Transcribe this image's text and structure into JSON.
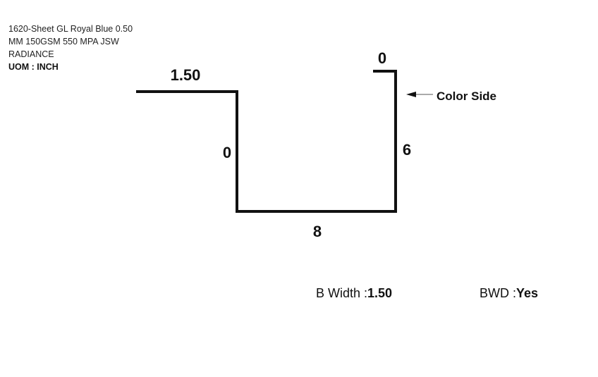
{
  "spec": {
    "line1": "1620-Sheet GL Royal Blue 0.50",
    "line2": "MM 150GSM 550 MPA JSW",
    "line3": "RADIANCE",
    "uom": "UOM : INCH"
  },
  "profile": {
    "segments": [
      {
        "name": "top-left-flange",
        "length": "1.50"
      },
      {
        "name": "left-wall",
        "length": "0"
      },
      {
        "name": "bottom",
        "length": "8"
      },
      {
        "name": "right-wall",
        "length": "6"
      },
      {
        "name": "top-right-flange",
        "length": "0"
      }
    ],
    "color_side_label": "Color Side"
  },
  "footer": {
    "b_width_label": "B Width :",
    "b_width_value": "1.50",
    "bwd_label": "BWD :",
    "bwd_value": "Yes"
  },
  "colors": {
    "line": "#111111",
    "arrow": "#111111",
    "background": "#ffffff"
  }
}
